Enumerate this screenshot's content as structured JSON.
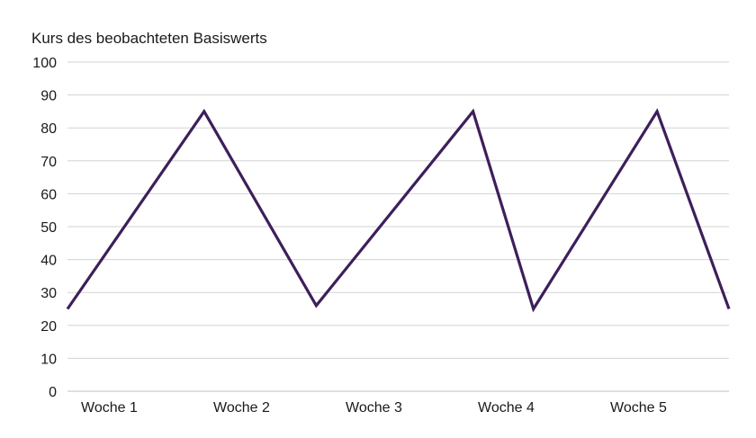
{
  "chart_data": {
    "type": "line",
    "ylabel": "Kurs des beobachteten Basiswerts",
    "xlabel": "",
    "title": "",
    "y_ticks": [
      "0",
      "10",
      "20",
      "30",
      "40",
      "50",
      "60",
      "70",
      "80",
      "90",
      "100"
    ],
    "ylim": [
      0,
      100
    ],
    "x_tick_labels": [
      "Woche 1",
      "Woche 2",
      "Woche 3",
      "Woche 4",
      "Woche 5"
    ],
    "xlim": [
      0,
      4.6
    ],
    "grid": true,
    "series": [
      {
        "x": [
          0,
          0.95,
          1.73,
          2.82,
          3.24,
          4.1,
          4.6
        ],
        "y": [
          25,
          85,
          26,
          85,
          25,
          85,
          25
        ]
      }
    ],
    "colors": {
      "line": "#3d1f5a",
      "grid": "#d3d3d3",
      "text": "#1a1a1a"
    }
  }
}
